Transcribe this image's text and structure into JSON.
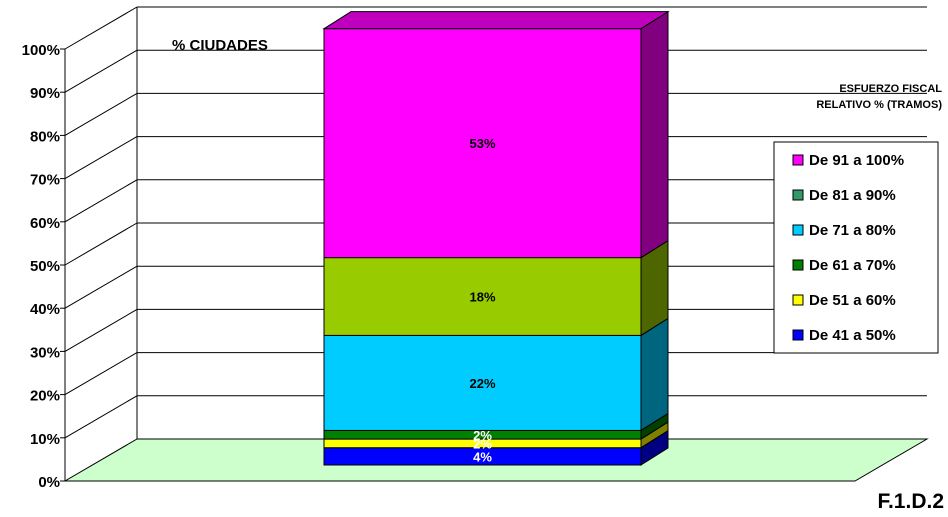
{
  "chart_data": {
    "type": "bar",
    "stacked": true,
    "three_d": true,
    "categories": [
      ""
    ],
    "series": [
      {
        "name": "De 41 a 50%",
        "values": [
          4
        ],
        "label": "4%",
        "color": "#0000ff",
        "label_color": "#ffffff"
      },
      {
        "name": "De 51 a 60%",
        "values": [
          2
        ],
        "label": "2%",
        "color": "#ffff00",
        "label_color": "#ffffff"
      },
      {
        "name": "De 61 a 70%",
        "values": [
          2
        ],
        "label": "2%",
        "color": "#008000",
        "label_color": "#ffffff"
      },
      {
        "name": "De 71 a 80%",
        "values": [
          22
        ],
        "label": "22%",
        "color": "#00ccff",
        "label_color": "#000000"
      },
      {
        "name": "De 81 a 90%",
        "values": [
          18
        ],
        "label": "18%",
        "color": "#99cc00",
        "label_color": "#000000"
      },
      {
        "name": "De 91 a 100%",
        "values": [
          53
        ],
        "label": "53%",
        "color": "#ff00ff",
        "label_color": "#000000"
      }
    ],
    "legend_items": [
      {
        "name": "De 91 a 100%",
        "color": "#ff00ff"
      },
      {
        "name": "De 81 a 90%",
        "color": "#339966"
      },
      {
        "name": "De 71 a 80%",
        "color": "#00ccff"
      },
      {
        "name": "De 61 a 70%",
        "color": "#008000"
      },
      {
        "name": "De 51 a 60%",
        "color": "#ffff00"
      },
      {
        "name": "De 41 a 50%",
        "color": "#0000ff"
      }
    ],
    "y_ticks": [
      "0%",
      "10%",
      "20%",
      "30%",
      "40%",
      "50%",
      "60%",
      "70%",
      "80%",
      "90%",
      "100%"
    ],
    "ylim": [
      0,
      100
    ],
    "ylabel": "% CIUDADES",
    "legend_title_line1": "ESFUERZO FISCAL",
    "legend_title_line2": "RELATIVO % (TRAMOS)",
    "legend_position": "right",
    "grid": true,
    "floor_color": "#ccffcc",
    "figure_id": "F.1.D.2"
  }
}
